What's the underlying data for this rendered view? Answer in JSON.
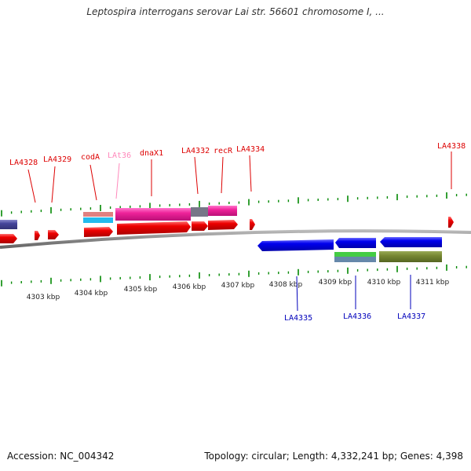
{
  "title": "Leptospira interrogans serovar Lai str. 56601 chromosome I, ...",
  "footer": {
    "accession": "Accession: NC_004342",
    "summary": "Topology: circular; Length: 4,332,241 bp; Genes: 4,398"
  },
  "colors": {
    "forward_label": "#dd0000",
    "reverse_label": "#0000bb",
    "faded_label": "#ff88bb",
    "tick": "#008800",
    "backbone": "#888888",
    "gene_red": "#ee0000",
    "gene_blue": "#0000ee",
    "gene_pink": "#ee2299",
    "gene_navy": "#444499"
  },
  "kbp_labels": [
    "4303 kbp",
    "4304 kbp",
    "4305 kbp",
    "4306 kbp",
    "4307 kbp",
    "4308 kbp",
    "4309 kbp",
    "4310 kbp",
    "4311 kbp"
  ],
  "forward_genes": [
    "LA4328",
    "LA4329",
    "codA",
    "LAt36",
    "dnaX1",
    "LA4332",
    "recR",
    "LA4334",
    "LA4338"
  ],
  "reverse_genes": [
    "LA4335",
    "LA4336",
    "LA4337"
  ]
}
